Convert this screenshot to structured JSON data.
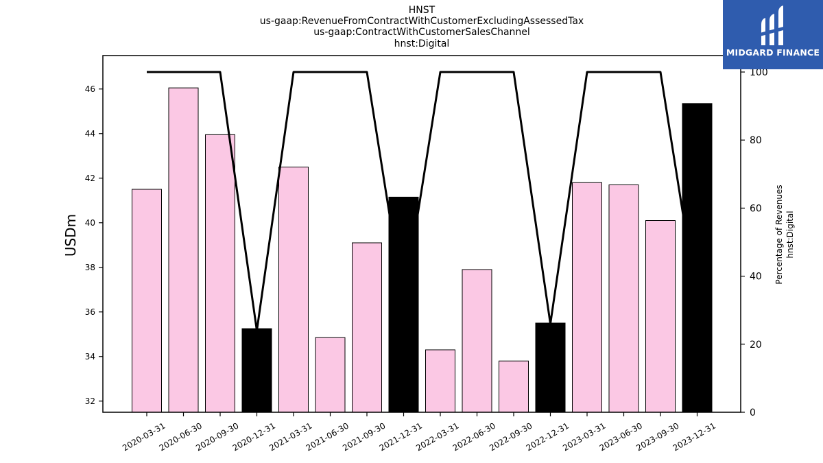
{
  "header": {
    "title_lines": [
      "HNST",
      "us-gaap:RevenueFromContractWithCustomerExcludingAssessedTax",
      "us-gaap:ContractWithCustomerSalesChannel",
      "hnst:Digital"
    ]
  },
  "logo": {
    "name": "MIDGARD FINANCE",
    "background": "#2f5cae",
    "icon": "midgard-logo-icon"
  },
  "chart_data": {
    "type": "bar",
    "categories": [
      "2020-03-31",
      "2020-06-30",
      "2020-09-30",
      "2020-12-31",
      "2021-03-31",
      "2021-06-30",
      "2021-09-30",
      "2021-12-31",
      "2022-03-31",
      "2022-06-30",
      "2022-09-30",
      "2022-12-31",
      "2023-03-31",
      "2023-06-30",
      "2023-09-30",
      "2023-12-31"
    ],
    "values": [
      41.5,
      46.05,
      43.95,
      35.25,
      42.5,
      34.85,
      39.1,
      41.15,
      34.3,
      37.9,
      33.8,
      35.5,
      41.8,
      41.7,
      40.1,
      45.35
    ],
    "bar_colors": [
      "#fbc8e4",
      "#fbc8e4",
      "#fbc8e4",
      "#000000",
      "#fbc8e4",
      "#fbc8e4",
      "#fbc8e4",
      "#000000",
      "#fbc8e4",
      "#fbc8e4",
      "#fbc8e4",
      "#000000",
      "#fbc8e4",
      "#fbc8e4",
      "#fbc8e4",
      "#000000"
    ],
    "ylabel": "USDm",
    "ylim": [
      31.5,
      47.5
    ],
    "yticks": [
      32,
      34,
      36,
      38,
      40,
      42,
      44,
      46
    ],
    "y2label_lines": [
      "Percentage of Revenues",
      "hnst:Digital"
    ],
    "y2lim": [
      0,
      100
    ],
    "y2ticks": [
      0,
      20,
      40,
      60,
      80,
      100
    ],
    "line_series": {
      "values": [
        100,
        100,
        100,
        24,
        100,
        100,
        100,
        32,
        100,
        100,
        100,
        26,
        100,
        100,
        100,
        32
      ],
      "color": "#000000"
    },
    "grid": false
  }
}
